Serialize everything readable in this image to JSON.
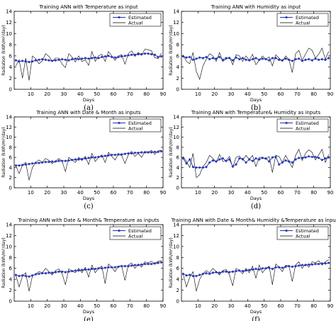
{
  "figure": {
    "colors": {
      "estimated": "#1f2fb0",
      "actual": "#000000",
      "axis": "#000000",
      "background": "#ffffff"
    }
  },
  "chart_data": [
    {
      "type": "line",
      "caption": "(a)",
      "title": "Training ANN with Temperature as input",
      "xlabel": "Days",
      "ylabel": "Radiation (kWh/m²/day)",
      "xlim": [
        0,
        90
      ],
      "ylim": [
        0,
        14
      ],
      "xticks": [
        10,
        20,
        30,
        40,
        50,
        60,
        70,
        80,
        90
      ],
      "yticks": [
        0,
        2,
        4,
        6,
        8,
        10,
        12,
        14
      ],
      "legend": {
        "position": "top-right",
        "entries": [
          "Estimated",
          "Actual"
        ]
      },
      "x": [
        1,
        3,
        5,
        7,
        9,
        11,
        13,
        15,
        17,
        19,
        21,
        23,
        25,
        27,
        29,
        31,
        33,
        35,
        37,
        39,
        41,
        43,
        45,
        47,
        49,
        51,
        53,
        55,
        57,
        59,
        61,
        63,
        65,
        67,
        69,
        71,
        73,
        75,
        77,
        79,
        81,
        83,
        85,
        87,
        89
      ],
      "series": [
        {
          "name": "Estimated",
          "marker": "star",
          "values": [
            5.2,
            5.0,
            5.1,
            5.0,
            4.9,
            5.0,
            5.2,
            5.3,
            5.4,
            5.3,
            5.2,
            5.1,
            5.2,
            5.3,
            5.4,
            5.3,
            5.2,
            5.4,
            5.5,
            5.4,
            5.5,
            5.6,
            5.5,
            5.6,
            5.7,
            5.6,
            5.8,
            5.9,
            6.0,
            5.8,
            5.7,
            5.8,
            5.9,
            6.0,
            6.1,
            6.2,
            6.2,
            6.3,
            6.3,
            6.4,
            6.4,
            6.3,
            6.2,
            5.8,
            5.9
          ]
        },
        {
          "name": "Actual",
          "marker": "none",
          "values": [
            4.2,
            5.3,
            2.0,
            5.6,
            1.6,
            6.0,
            5.5,
            4.6,
            5.1,
            6.4,
            5.9,
            5.0,
            5.6,
            5.6,
            4.5,
            3.9,
            6.4,
            5.8,
            4.9,
            6.0,
            5.0,
            5.3,
            4.3,
            6.8,
            5.0,
            6.0,
            6.3,
            5.0,
            6.8,
            6.0,
            5.2,
            6.0,
            6.2,
            4.5,
            6.4,
            6.9,
            5.9,
            6.6,
            6.1,
            7.2,
            7.1,
            6.9,
            5.7,
            5.5,
            6.5
          ]
        }
      ]
    },
    {
      "type": "line",
      "caption": "(b)",
      "title": "Training ANN with Humidity as input",
      "xlabel": "Days",
      "ylabel": "Radiation (kWh/m²/day)",
      "xlim": [
        0,
        90
      ],
      "ylim": [
        0,
        14
      ],
      "xticks": [
        10,
        20,
        30,
        40,
        50,
        60,
        70,
        80,
        90
      ],
      "yticks": [
        0,
        2,
        4,
        6,
        8,
        10,
        12,
        14
      ],
      "legend": {
        "position": "top-right",
        "entries": [
          "Estimated",
          "Actual"
        ]
      },
      "x": [
        1,
        3,
        5,
        7,
        9,
        11,
        13,
        15,
        17,
        19,
        21,
        23,
        25,
        27,
        29,
        31,
        33,
        35,
        37,
        39,
        41,
        43,
        45,
        47,
        49,
        51,
        53,
        55,
        57,
        59,
        61,
        63,
        65,
        67,
        69,
        71,
        73,
        75,
        77,
        79,
        81,
        83,
        85,
        87,
        89
      ],
      "series": [
        {
          "name": "Estimated",
          "marker": "star",
          "values": [
            5.9,
            5.7,
            5.8,
            5.3,
            5.5,
            5.7,
            5.6,
            5.8,
            5.4,
            5.6,
            5.5,
            5.8,
            5.3,
            5.6,
            5.6,
            5.2,
            5.7,
            5.4,
            5.6,
            5.3,
            5.2,
            5.4,
            5.6,
            5.3,
            5.5,
            5.4,
            5.2,
            5.6,
            5.6,
            5.3,
            5.2,
            5.5,
            5.3,
            5.1,
            5.4,
            5.5,
            5.1,
            5.3,
            5.4,
            5.2,
            5.5,
            5.3,
            5.4,
            5.3,
            5.6
          ]
        },
        {
          "name": "Actual",
          "marker": "none",
          "values": [
            6.2,
            5.0,
            4.6,
            6.6,
            3.2,
            1.8,
            4.2,
            5.4,
            6.4,
            6.0,
            5.0,
            6.6,
            5.0,
            5.4,
            5.8,
            4.4,
            6.2,
            6.0,
            5.0,
            6.0,
            5.2,
            6.3,
            4.4,
            5.2,
            6.0,
            5.4,
            5.8,
            4.2,
            6.2,
            5.6,
            5.0,
            6.0,
            5.3,
            3.0,
            6.4,
            7.0,
            5.2,
            6.3,
            7.4,
            7.0,
            5.6,
            6.3,
            7.4,
            5.4,
            6.8
          ]
        }
      ]
    },
    {
      "type": "line",
      "caption": "(c)",
      "title": "Training ANN with Date & Month as inputs",
      "xlabel": "Days",
      "ylabel": "Radiation (kWh/m²/day)",
      "xlim": [
        0,
        90
      ],
      "ylim": [
        0,
        14
      ],
      "xticks": [
        10,
        20,
        30,
        40,
        50,
        60,
        70,
        80,
        90
      ],
      "yticks": [
        0,
        2,
        4,
        6,
        8,
        10,
        12,
        14
      ],
      "legend": {
        "position": "top-right",
        "entries": [
          "Estimated",
          "Actual"
        ]
      },
      "x": [
        1,
        3,
        5,
        7,
        9,
        11,
        13,
        15,
        17,
        19,
        21,
        23,
        25,
        27,
        29,
        31,
        33,
        35,
        37,
        39,
        41,
        43,
        45,
        47,
        49,
        51,
        53,
        55,
        57,
        59,
        61,
        63,
        65,
        67,
        69,
        71,
        73,
        75,
        77,
        79,
        81,
        83,
        85,
        87,
        89
      ],
      "series": [
        {
          "name": "Estimated",
          "marker": "star",
          "values": [
            4.4,
            4.4,
            4.5,
            4.6,
            4.7,
            4.8,
            4.9,
            4.9,
            5.0,
            5.1,
            5.1,
            5.2,
            5.2,
            5.3,
            5.3,
            5.3,
            5.4,
            5.5,
            5.6,
            5.6,
            5.7,
            5.8,
            5.9,
            6.0,
            6.0,
            6.1,
            6.2,
            6.3,
            6.4,
            6.5,
            6.5,
            6.6,
            6.6,
            6.7,
            6.8,
            6.8,
            6.9,
            6.9,
            7.0,
            7.0,
            7.0,
            7.0,
            7.1,
            7.1,
            7.2
          ]
        },
        {
          "name": "Actual",
          "marker": "none",
          "values": [
            4.4,
            2.8,
            4.5,
            5.0,
            1.5,
            4.0,
            5.0,
            5.5,
            5.0,
            5.8,
            5.4,
            4.8,
            5.2,
            5.8,
            5.2,
            3.2,
            6.0,
            5.5,
            5.0,
            6.0,
            5.4,
            6.2,
            4.6,
            6.8,
            5.2,
            6.0,
            6.5,
            5.0,
            7.0,
            6.2,
            5.5,
            6.6,
            6.4,
            4.8,
            6.5,
            7.2,
            6.2,
            6.8,
            6.0,
            7.2,
            7.0,
            7.4,
            6.6,
            7.3,
            7.4
          ]
        }
      ]
    },
    {
      "type": "line",
      "caption": "(d)",
      "title": "Training ANN with Temperature& Humidity as inputs",
      "xlabel": "Days",
      "ylabel": "Radiation (kWh/m²/day)",
      "xlim": [
        0,
        90
      ],
      "ylim": [
        0,
        14
      ],
      "xticks": [
        10,
        20,
        30,
        40,
        50,
        60,
        70,
        80,
        90
      ],
      "yticks": [
        0,
        2,
        4,
        6,
        8,
        10,
        12,
        14
      ],
      "legend": {
        "position": "top-right",
        "entries": [
          "Estimated",
          "Actual"
        ]
      },
      "x": [
        1,
        3,
        5,
        7,
        9,
        11,
        13,
        15,
        17,
        19,
        21,
        23,
        25,
        27,
        29,
        31,
        33,
        35,
        37,
        39,
        41,
        43,
        45,
        47,
        49,
        51,
        53,
        55,
        57,
        59,
        61,
        63,
        65,
        67,
        69,
        71,
        73,
        75,
        77,
        79,
        81,
        83,
        85,
        87,
        89
      ],
      "series": [
        {
          "name": "Estimated",
          "marker": "star",
          "values": [
            5.8,
            4.8,
            5.6,
            4.1,
            4.0,
            4.0,
            4.0,
            4.1,
            5.0,
            5.4,
            5.2,
            5.6,
            5.8,
            5.3,
            5.6,
            4.2,
            4.6,
            5.8,
            5.7,
            5.0,
            5.6,
            5.3,
            5.8,
            5.6,
            5.9,
            5.8,
            5.2,
            6.0,
            6.1,
            4.6,
            5.0,
            5.4,
            5.2,
            5.0,
            5.6,
            5.9,
            5.9,
            6.0,
            6.2,
            6.1,
            6.1,
            5.9,
            5.5,
            5.8,
            6.0
          ]
        },
        {
          "name": "Actual",
          "marker": "none",
          "values": [
            6.2,
            5.2,
            4.0,
            6.8,
            2.0,
            2.6,
            4.2,
            5.0,
            6.4,
            5.8,
            5.0,
            6.6,
            5.2,
            5.4,
            6.2,
            4.0,
            6.0,
            6.3,
            5.4,
            6.4,
            5.6,
            6.4,
            4.2,
            6.0,
            6.0,
            5.6,
            6.2,
            3.0,
            6.4,
            6.2,
            5.0,
            6.4,
            5.2,
            4.0,
            6.4,
            7.6,
            5.4,
            6.8,
            7.5,
            7.0,
            5.5,
            6.5,
            7.6,
            5.0,
            6.6
          ]
        }
      ]
    },
    {
      "type": "line",
      "caption": "(e)",
      "title": "Training ANN with Date & Month& Temperature as inputs",
      "xlabel": "Days",
      "ylabel": "Radiation (kWh/m²/day)",
      "xlim": [
        0,
        90
      ],
      "ylim": [
        0,
        14
      ],
      "xticks": [
        10,
        20,
        30,
        40,
        50,
        60,
        70,
        80,
        90
      ],
      "yticks": [
        0,
        2,
        4,
        6,
        8,
        10,
        12,
        14
      ],
      "legend": {
        "position": "top-right",
        "entries": [
          "Estimated",
          "Actual"
        ]
      },
      "x": [
        1,
        3,
        5,
        7,
        9,
        11,
        13,
        15,
        17,
        19,
        21,
        23,
        25,
        27,
        29,
        31,
        33,
        35,
        37,
        39,
        41,
        43,
        45,
        47,
        49,
        51,
        53,
        55,
        57,
        59,
        61,
        63,
        65,
        67,
        69,
        71,
        73,
        75,
        77,
        79,
        81,
        83,
        85,
        87,
        89
      ],
      "series": [
        {
          "name": "Estimated",
          "marker": "star",
          "values": [
            4.8,
            4.6,
            4.7,
            4.6,
            4.5,
            4.7,
            4.9,
            5.0,
            5.1,
            5.1,
            5.2,
            5.2,
            5.3,
            5.4,
            5.4,
            5.3,
            5.4,
            5.5,
            5.6,
            5.6,
            5.7,
            5.8,
            5.8,
            5.9,
            5.9,
            6.0,
            6.0,
            6.1,
            6.2,
            6.2,
            6.2,
            6.3,
            6.4,
            6.4,
            6.4,
            6.5,
            6.6,
            6.6,
            6.7,
            6.8,
            6.8,
            6.8,
            6.9,
            7.0,
            7.1
          ]
        },
        {
          "name": "Actual",
          "marker": "none",
          "values": [
            4.8,
            2.6,
            4.6,
            5.2,
            1.8,
            4.6,
            5.0,
            5.4,
            5.2,
            6.0,
            5.4,
            4.8,
            5.6,
            5.9,
            5.0,
            3.0,
            5.9,
            5.5,
            5.2,
            6.0,
            5.2,
            6.2,
            4.4,
            6.6,
            5.2,
            6.0,
            6.4,
            3.2,
            6.8,
            6.2,
            5.4,
            6.4,
            6.4,
            3.8,
            6.6,
            7.0,
            6.0,
            6.8,
            6.2,
            7.2,
            7.0,
            7.3,
            6.8,
            7.3,
            7.4
          ]
        }
      ]
    },
    {
      "type": "line",
      "caption": "(f)",
      "title": "Training ANN with Date & Month& Humidity &Temperature as inputs",
      "xlabel": "Days",
      "ylabel": "Radiation (kWh/m²/day)",
      "xlim": [
        0,
        90
      ],
      "ylim": [
        0,
        14
      ],
      "xticks": [
        10,
        20,
        30,
        40,
        50,
        60,
        70,
        80,
        90
      ],
      "yticks": [
        0,
        2,
        4,
        6,
        8,
        10,
        12,
        14
      ],
      "legend": {
        "position": "top-right",
        "entries": [
          "Estimated",
          "Actual"
        ]
      },
      "x": [
        1,
        3,
        5,
        7,
        9,
        11,
        13,
        15,
        17,
        19,
        21,
        23,
        25,
        27,
        29,
        31,
        33,
        35,
        37,
        39,
        41,
        43,
        45,
        47,
        49,
        51,
        53,
        55,
        57,
        59,
        61,
        63,
        65,
        67,
        69,
        71,
        73,
        75,
        77,
        79,
        81,
        83,
        85,
        87,
        89
      ],
      "series": [
        {
          "name": "Estimated",
          "marker": "star",
          "values": [
            5.0,
            4.7,
            4.8,
            4.6,
            4.6,
            4.8,
            5.0,
            5.1,
            5.0,
            5.2,
            5.3,
            5.2,
            5.4,
            5.4,
            5.3,
            5.4,
            5.5,
            5.6,
            5.5,
            5.6,
            5.7,
            5.8,
            5.9,
            5.8,
            6.0,
            6.0,
            6.1,
            5.9,
            6.2,
            6.2,
            6.1,
            6.3,
            6.4,
            6.3,
            6.4,
            6.5,
            6.6,
            6.6,
            6.7,
            6.7,
            6.8,
            6.8,
            6.9,
            6.9,
            7.0
          ]
        },
        {
          "name": "Actual",
          "marker": "none",
          "values": [
            5.0,
            2.6,
            4.4,
            5.4,
            1.8,
            4.0,
            5.0,
            5.6,
            5.2,
            6.0,
            5.4,
            4.8,
            5.6,
            5.8,
            4.8,
            2.8,
            6.0,
            5.6,
            5.0,
            6.0,
            5.2,
            6.4,
            4.2,
            6.6,
            5.2,
            6.0,
            6.4,
            3.0,
            6.8,
            6.2,
            5.4,
            6.6,
            6.4,
            3.6,
            6.6,
            7.2,
            6.0,
            6.8,
            6.2,
            7.2,
            7.0,
            7.4,
            6.6,
            7.2,
            7.6
          ]
        }
      ]
    }
  ]
}
